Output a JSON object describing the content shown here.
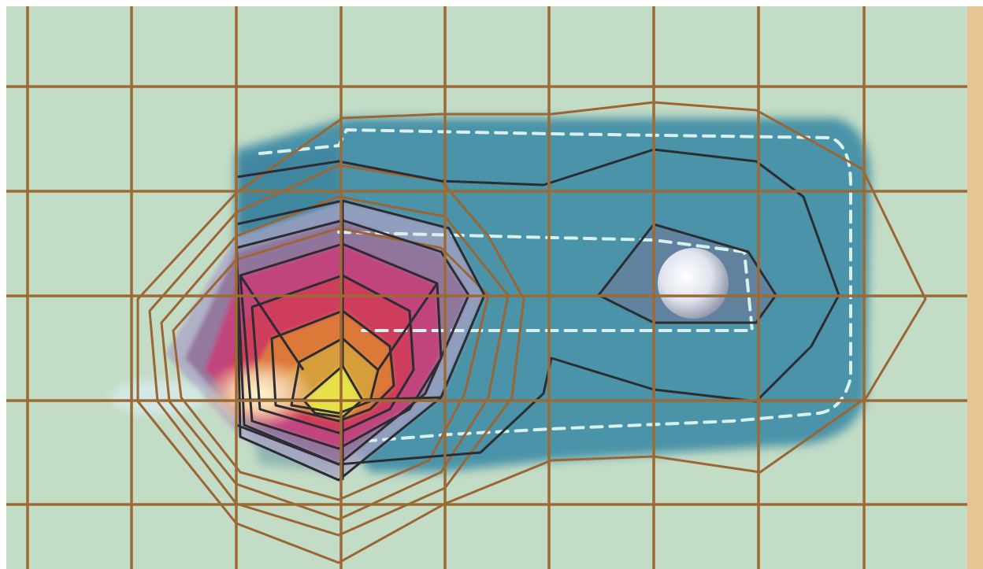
{
  "colors": {
    "paper": "#c3dcc6",
    "paper_edge": "#e7c494",
    "grid": "#9c6a33",
    "contour_outer": "#9b6534",
    "contour_inner": "#2c2c33",
    "water": "#3f8da6",
    "water_dark": "#336f90",
    "dash": "#d8f1ec",
    "heat_yellow": "#e9e24a",
    "heat_orange": "#d38a3f",
    "heat_red": "#c9426b",
    "heat_purple": "#7e5f8d",
    "sphere": "#e9ebf2"
  },
  "diagram": {
    "grid": {
      "columns": 9,
      "rows": 5
    },
    "contour_levels": 12,
    "hot_spot": "yellow-peak",
    "cold_spot": "white-sphere"
  }
}
